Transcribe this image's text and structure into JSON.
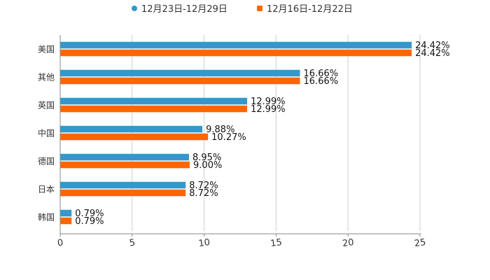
{
  "chart_data": {
    "type": "bar",
    "orientation": "horizontal",
    "title": "",
    "xlabel": "",
    "ylabel": "",
    "xlim": [
      0,
      25
    ],
    "x_ticks": [
      0,
      5,
      10,
      15,
      20,
      25
    ],
    "grid": true,
    "legend_position": "top",
    "categories": [
      "美国",
      "其他",
      "英国",
      "中国",
      "德国",
      "日本",
      "韩国"
    ],
    "series": [
      {
        "name": "12月23日-12月29日",
        "color": "#3399cc",
        "values": [
          24.42,
          16.66,
          12.99,
          9.88,
          8.95,
          8.72,
          0.79
        ],
        "labels": [
          "24.42%",
          "16.66%",
          "12.99%",
          "9.88%",
          "8.95%",
          "8.72%",
          "0.79%"
        ]
      },
      {
        "name": "12月16日-12月22日",
        "color": "#ff6600",
        "values": [
          24.42,
          16.66,
          12.99,
          10.27,
          9.0,
          8.72,
          0.79
        ],
        "labels": [
          "24.42%",
          "16.66%",
          "12.99%",
          "10.27%",
          "9.00%",
          "8.72%",
          "0.79%"
        ]
      }
    ]
  }
}
